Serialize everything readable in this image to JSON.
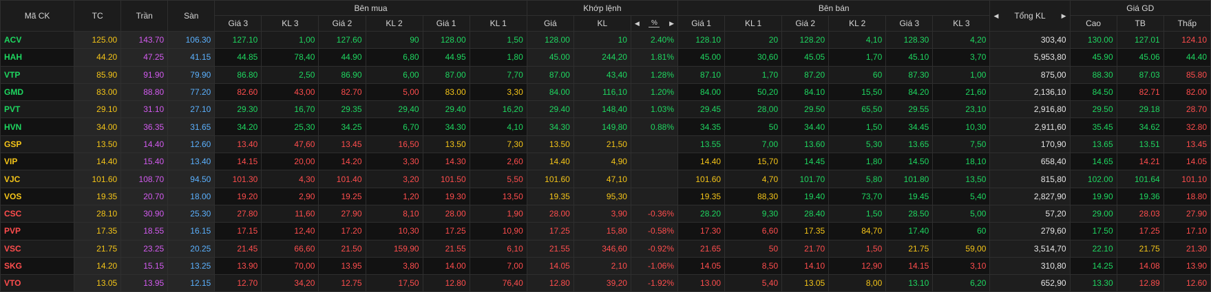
{
  "colors": {
    "up": "#1ed760",
    "down": "#ff4d4d",
    "ref": "#f5c518",
    "ceiling": "#d35bf0",
    "floor": "#5bb1ff",
    "white": "#e6e6e6"
  },
  "headers": {
    "symbol": "Mã CK",
    "ref": "TC",
    "ceiling": "Trần",
    "floor": "Sàn",
    "bid_group": "Bên mua",
    "match_group": "Khớp lệnh",
    "ask_group": "Bên bán",
    "total_vol": "Tổng KL",
    "price_group": "Giá GD",
    "bid": [
      "Giá 3",
      "KL 3",
      "Giá 2",
      "KL 2",
      "Giá 1",
      "KL 1"
    ],
    "match": [
      "Giá",
      "KL",
      "%"
    ],
    "ask": [
      "Giá 1",
      "KL 1",
      "Giá 2",
      "KL 2",
      "Giá 3",
      "KL 3"
    ],
    "price": [
      "Cao",
      "TB",
      "Thấp"
    ]
  },
  "icons": {
    "left": "caret-left-icon",
    "right": "caret-right-icon"
  },
  "rows": [
    {
      "sym": [
        "ACV",
        "up"
      ],
      "ref": "125.00",
      "ceil": "143.70",
      "floor": "106.30",
      "bid": [
        [
          "127.10",
          "up"
        ],
        [
          "1,00",
          "up"
        ],
        [
          "127.60",
          "up"
        ],
        [
          "90",
          "up"
        ],
        [
          "128.00",
          "up"
        ],
        [
          "1,50",
          "up"
        ]
      ],
      "match": [
        [
          "128.00",
          "up"
        ],
        [
          "10",
          "up"
        ],
        [
          "2.40%",
          "up"
        ]
      ],
      "ask": [
        [
          "128.10",
          "up"
        ],
        [
          "20",
          "up"
        ],
        [
          "128.20",
          "up"
        ],
        [
          "4,10",
          "up"
        ],
        [
          "128.30",
          "up"
        ],
        [
          "4,20",
          "up"
        ]
      ],
      "total": "303,40",
      "price": [
        [
          "130.00",
          "up"
        ],
        [
          "127.01",
          "up"
        ],
        [
          "124.10",
          "down"
        ]
      ]
    },
    {
      "sym": [
        "HAH",
        "up"
      ],
      "ref": "44.20",
      "ceil": "47.25",
      "floor": "41.15",
      "bid": [
        [
          "44.85",
          "up"
        ],
        [
          "78,40",
          "up"
        ],
        [
          "44.90",
          "up"
        ],
        [
          "6,80",
          "up"
        ],
        [
          "44.95",
          "up"
        ],
        [
          "1,80",
          "up"
        ]
      ],
      "match": [
        [
          "45.00",
          "up"
        ],
        [
          "244,20",
          "up"
        ],
        [
          "1.81%",
          "up"
        ]
      ],
      "ask": [
        [
          "45.00",
          "up"
        ],
        [
          "30,60",
          "up"
        ],
        [
          "45.05",
          "up"
        ],
        [
          "1,70",
          "up"
        ],
        [
          "45.10",
          "up"
        ],
        [
          "3,70",
          "up"
        ]
      ],
      "total": "5,953,80",
      "price": [
        [
          "45.90",
          "up"
        ],
        [
          "45.06",
          "up"
        ],
        [
          "44.40",
          "up"
        ]
      ]
    },
    {
      "sym": [
        "VTP",
        "up"
      ],
      "ref": "85.90",
      "ceil": "91.90",
      "floor": "79.90",
      "bid": [
        [
          "86.80",
          "up"
        ],
        [
          "2,50",
          "up"
        ],
        [
          "86.90",
          "up"
        ],
        [
          "6,00",
          "up"
        ],
        [
          "87.00",
          "up"
        ],
        [
          "7,70",
          "up"
        ]
      ],
      "match": [
        [
          "87.00",
          "up"
        ],
        [
          "43,40",
          "up"
        ],
        [
          "1.28%",
          "up"
        ]
      ],
      "ask": [
        [
          "87.10",
          "up"
        ],
        [
          "1,70",
          "up"
        ],
        [
          "87.20",
          "up"
        ],
        [
          "60",
          "up"
        ],
        [
          "87.30",
          "up"
        ],
        [
          "1,00",
          "up"
        ]
      ],
      "total": "875,00",
      "price": [
        [
          "88.30",
          "up"
        ],
        [
          "87.03",
          "up"
        ],
        [
          "85.80",
          "down"
        ]
      ]
    },
    {
      "sym": [
        "GMD",
        "up"
      ],
      "ref": "83.00",
      "ceil": "88.80",
      "floor": "77.20",
      "bid": [
        [
          "82.60",
          "down"
        ],
        [
          "43,00",
          "down"
        ],
        [
          "82.70",
          "down"
        ],
        [
          "5,00",
          "down"
        ],
        [
          "83.00",
          "ref"
        ],
        [
          "3,30",
          "ref"
        ]
      ],
      "match": [
        [
          "84.00",
          "up"
        ],
        [
          "116,10",
          "up"
        ],
        [
          "1.20%",
          "up"
        ]
      ],
      "ask": [
        [
          "84.00",
          "up"
        ],
        [
          "50,20",
          "up"
        ],
        [
          "84.10",
          "up"
        ],
        [
          "15,50",
          "up"
        ],
        [
          "84.20",
          "up"
        ],
        [
          "21,60",
          "up"
        ]
      ],
      "total": "2,136,10",
      "price": [
        [
          "84.50",
          "up"
        ],
        [
          "82.71",
          "down"
        ],
        [
          "82.00",
          "down"
        ]
      ]
    },
    {
      "sym": [
        "PVT",
        "up"
      ],
      "ref": "29.10",
      "ceil": "31.10",
      "floor": "27.10",
      "bid": [
        [
          "29.30",
          "up"
        ],
        [
          "16,70",
          "up"
        ],
        [
          "29.35",
          "up"
        ],
        [
          "29,40",
          "up"
        ],
        [
          "29.40",
          "up"
        ],
        [
          "16,20",
          "up"
        ]
      ],
      "match": [
        [
          "29.40",
          "up"
        ],
        [
          "148,40",
          "up"
        ],
        [
          "1.03%",
          "up"
        ]
      ],
      "ask": [
        [
          "29.45",
          "up"
        ],
        [
          "28,00",
          "up"
        ],
        [
          "29.50",
          "up"
        ],
        [
          "65,50",
          "up"
        ],
        [
          "29.55",
          "up"
        ],
        [
          "23,10",
          "up"
        ]
      ],
      "total": "2,916,80",
      "price": [
        [
          "29.50",
          "up"
        ],
        [
          "29.18",
          "up"
        ],
        [
          "28.70",
          "down"
        ]
      ]
    },
    {
      "sym": [
        "HVN",
        "up"
      ],
      "ref": "34.00",
      "ceil": "36.35",
      "floor": "31.65",
      "bid": [
        [
          "34.20",
          "up"
        ],
        [
          "25,30",
          "up"
        ],
        [
          "34.25",
          "up"
        ],
        [
          "6,70",
          "up"
        ],
        [
          "34.30",
          "up"
        ],
        [
          "4,10",
          "up"
        ]
      ],
      "match": [
        [
          "34.30",
          "up"
        ],
        [
          "149,80",
          "up"
        ],
        [
          "0.88%",
          "up"
        ]
      ],
      "ask": [
        [
          "34.35",
          "up"
        ],
        [
          "50",
          "up"
        ],
        [
          "34.40",
          "up"
        ],
        [
          "1,50",
          "up"
        ],
        [
          "34.45",
          "up"
        ],
        [
          "10,30",
          "up"
        ]
      ],
      "total": "2,911,60",
      "price": [
        [
          "35.45",
          "up"
        ],
        [
          "34.62",
          "up"
        ],
        [
          "32.80",
          "down"
        ]
      ]
    },
    {
      "sym": [
        "GSP",
        "ref"
      ],
      "ref": "13.50",
      "ceil": "14.40",
      "floor": "12.60",
      "bid": [
        [
          "13.40",
          "down"
        ],
        [
          "47,60",
          "down"
        ],
        [
          "13.45",
          "down"
        ],
        [
          "16,50",
          "down"
        ],
        [
          "13.50",
          "ref"
        ],
        [
          "7,30",
          "ref"
        ]
      ],
      "match": [
        [
          "13.50",
          "ref"
        ],
        [
          "21,50",
          "ref"
        ],
        [
          "",
          "ref"
        ]
      ],
      "ask": [
        [
          "13.55",
          "up"
        ],
        [
          "7,00",
          "up"
        ],
        [
          "13.60",
          "up"
        ],
        [
          "5,30",
          "up"
        ],
        [
          "13.65",
          "up"
        ],
        [
          "7,50",
          "up"
        ]
      ],
      "total": "170,90",
      "price": [
        [
          "13.65",
          "up"
        ],
        [
          "13.51",
          "up"
        ],
        [
          "13.45",
          "down"
        ]
      ]
    },
    {
      "sym": [
        "VIP",
        "ref"
      ],
      "ref": "14.40",
      "ceil": "15.40",
      "floor": "13.40",
      "bid": [
        [
          "14.15",
          "down"
        ],
        [
          "20,00",
          "down"
        ],
        [
          "14.20",
          "down"
        ],
        [
          "3,30",
          "down"
        ],
        [
          "14.30",
          "down"
        ],
        [
          "2,60",
          "down"
        ]
      ],
      "match": [
        [
          "14.40",
          "ref"
        ],
        [
          "4,90",
          "ref"
        ],
        [
          "",
          "ref"
        ]
      ],
      "ask": [
        [
          "14.40",
          "ref"
        ],
        [
          "15,70",
          "ref"
        ],
        [
          "14.45",
          "up"
        ],
        [
          "1,80",
          "up"
        ],
        [
          "14.50",
          "up"
        ],
        [
          "18,10",
          "up"
        ]
      ],
      "total": "658,40",
      "price": [
        [
          "14.65",
          "up"
        ],
        [
          "14.21",
          "down"
        ],
        [
          "14.05",
          "down"
        ]
      ]
    },
    {
      "sym": [
        "VJC",
        "ref"
      ],
      "ref": "101.60",
      "ceil": "108.70",
      "floor": "94.50",
      "bid": [
        [
          "101.30",
          "down"
        ],
        [
          "4,30",
          "down"
        ],
        [
          "101.40",
          "down"
        ],
        [
          "3,20",
          "down"
        ],
        [
          "101.50",
          "down"
        ],
        [
          "5,50",
          "down"
        ]
      ],
      "match": [
        [
          "101.60",
          "ref"
        ],
        [
          "47,10",
          "ref"
        ],
        [
          "",
          "ref"
        ]
      ],
      "ask": [
        [
          "101.60",
          "ref"
        ],
        [
          "4,70",
          "ref"
        ],
        [
          "101.70",
          "up"
        ],
        [
          "5,80",
          "up"
        ],
        [
          "101.80",
          "up"
        ],
        [
          "13,50",
          "up"
        ]
      ],
      "total": "815,80",
      "price": [
        [
          "102.00",
          "up"
        ],
        [
          "101.64",
          "up"
        ],
        [
          "101.10",
          "down"
        ]
      ]
    },
    {
      "sym": [
        "VOS",
        "ref"
      ],
      "ref": "19.35",
      "ceil": "20.70",
      "floor": "18.00",
      "bid": [
        [
          "19.20",
          "down"
        ],
        [
          "2,90",
          "down"
        ],
        [
          "19.25",
          "down"
        ],
        [
          "1,20",
          "down"
        ],
        [
          "19.30",
          "down"
        ],
        [
          "13,50",
          "down"
        ]
      ],
      "match": [
        [
          "19.35",
          "ref"
        ],
        [
          "95,30",
          "ref"
        ],
        [
          "",
          "ref"
        ]
      ],
      "ask": [
        [
          "19.35",
          "ref"
        ],
        [
          "88,30",
          "ref"
        ],
        [
          "19.40",
          "up"
        ],
        [
          "73,70",
          "up"
        ],
        [
          "19.45",
          "up"
        ],
        [
          "5,40",
          "up"
        ]
      ],
      "total": "2,827,90",
      "price": [
        [
          "19.90",
          "up"
        ],
        [
          "19.36",
          "up"
        ],
        [
          "18.80",
          "down"
        ]
      ]
    },
    {
      "sym": [
        "CSC",
        "down"
      ],
      "ref": "28.10",
      "ceil": "30.90",
      "floor": "25.30",
      "bid": [
        [
          "27.80",
          "down"
        ],
        [
          "11,60",
          "down"
        ],
        [
          "27.90",
          "down"
        ],
        [
          "8,10",
          "down"
        ],
        [
          "28.00",
          "down"
        ],
        [
          "1,90",
          "down"
        ]
      ],
      "match": [
        [
          "28.00",
          "down"
        ],
        [
          "3,90",
          "down"
        ],
        [
          "-0.36%",
          "down"
        ]
      ],
      "ask": [
        [
          "28.20",
          "up"
        ],
        [
          "9,30",
          "up"
        ],
        [
          "28.40",
          "up"
        ],
        [
          "1,50",
          "up"
        ],
        [
          "28.50",
          "up"
        ],
        [
          "5,00",
          "up"
        ]
      ],
      "total": "57,20",
      "price": [
        [
          "29.00",
          "up"
        ],
        [
          "28.03",
          "down"
        ],
        [
          "27.90",
          "down"
        ]
      ]
    },
    {
      "sym": [
        "PVP",
        "down"
      ],
      "ref": "17.35",
      "ceil": "18.55",
      "floor": "16.15",
      "bid": [
        [
          "17.15",
          "down"
        ],
        [
          "12,40",
          "down"
        ],
        [
          "17.20",
          "down"
        ],
        [
          "10,30",
          "down"
        ],
        [
          "17.25",
          "down"
        ],
        [
          "10,90",
          "down"
        ]
      ],
      "match": [
        [
          "17.25",
          "down"
        ],
        [
          "15,80",
          "down"
        ],
        [
          "-0.58%",
          "down"
        ]
      ],
      "ask": [
        [
          "17.30",
          "down"
        ],
        [
          "6,60",
          "down"
        ],
        [
          "17.35",
          "ref"
        ],
        [
          "84,70",
          "ref"
        ],
        [
          "17.40",
          "up"
        ],
        [
          "60",
          "up"
        ]
      ],
      "total": "279,60",
      "price": [
        [
          "17.50",
          "up"
        ],
        [
          "17.25",
          "down"
        ],
        [
          "17.10",
          "down"
        ]
      ]
    },
    {
      "sym": [
        "VSC",
        "down"
      ],
      "ref": "21.75",
      "ceil": "23.25",
      "floor": "20.25",
      "bid": [
        [
          "21.45",
          "down"
        ],
        [
          "66,60",
          "down"
        ],
        [
          "21.50",
          "down"
        ],
        [
          "159,90",
          "down"
        ],
        [
          "21.55",
          "down"
        ],
        [
          "6,10",
          "down"
        ]
      ],
      "match": [
        [
          "21.55",
          "down"
        ],
        [
          "346,60",
          "down"
        ],
        [
          "-0.92%",
          "down"
        ]
      ],
      "ask": [
        [
          "21.65",
          "down"
        ],
        [
          "50",
          "down"
        ],
        [
          "21.70",
          "down"
        ],
        [
          "1,50",
          "down"
        ],
        [
          "21.75",
          "ref"
        ],
        [
          "59,00",
          "ref"
        ]
      ],
      "total": "3,514,70",
      "price": [
        [
          "22.10",
          "up"
        ],
        [
          "21.75",
          "ref"
        ],
        [
          "21.30",
          "down"
        ]
      ]
    },
    {
      "sym": [
        "SKG",
        "down"
      ],
      "ref": "14.20",
      "ceil": "15.15",
      "floor": "13.25",
      "bid": [
        [
          "13.90",
          "down"
        ],
        [
          "70,00",
          "down"
        ],
        [
          "13.95",
          "down"
        ],
        [
          "3,80",
          "down"
        ],
        [
          "14.00",
          "down"
        ],
        [
          "7,00",
          "down"
        ]
      ],
      "match": [
        [
          "14.05",
          "down"
        ],
        [
          "2,10",
          "down"
        ],
        [
          "-1.06%",
          "down"
        ]
      ],
      "ask": [
        [
          "14.05",
          "down"
        ],
        [
          "8,50",
          "down"
        ],
        [
          "14.10",
          "down"
        ],
        [
          "12,90",
          "down"
        ],
        [
          "14.15",
          "down"
        ],
        [
          "3,10",
          "down"
        ]
      ],
      "total": "310,80",
      "price": [
        [
          "14.25",
          "up"
        ],
        [
          "14.08",
          "down"
        ],
        [
          "13.90",
          "down"
        ]
      ]
    },
    {
      "sym": [
        "VTO",
        "down"
      ],
      "ref": "13.05",
      "ceil": "13.95",
      "floor": "12.15",
      "bid": [
        [
          "12.70",
          "down"
        ],
        [
          "34,20",
          "down"
        ],
        [
          "12.75",
          "down"
        ],
        [
          "17,50",
          "down"
        ],
        [
          "12.80",
          "down"
        ],
        [
          "76,40",
          "down"
        ]
      ],
      "match": [
        [
          "12.80",
          "down"
        ],
        [
          "39,20",
          "down"
        ],
        [
          "-1.92%",
          "down"
        ]
      ],
      "ask": [
        [
          "13.00",
          "down"
        ],
        [
          "5,40",
          "down"
        ],
        [
          "13.05",
          "ref"
        ],
        [
          "8,00",
          "ref"
        ],
        [
          "13.10",
          "up"
        ],
        [
          "6,20",
          "up"
        ]
      ],
      "total": "652,90",
      "price": [
        [
          "13.30",
          "up"
        ],
        [
          "12.89",
          "down"
        ],
        [
          "12.60",
          "down"
        ]
      ]
    }
  ]
}
